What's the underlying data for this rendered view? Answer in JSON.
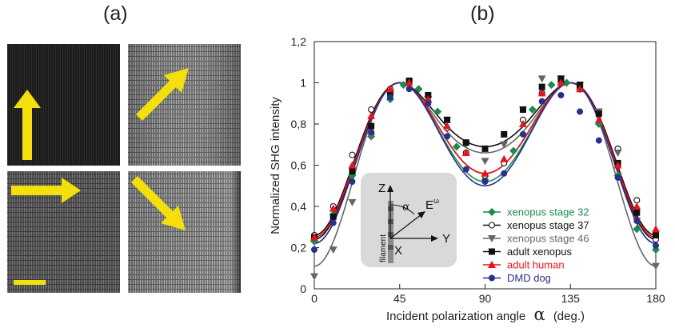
{
  "panel_labels": {
    "a": "(a)",
    "b": "(b)"
  },
  "micrographs": [
    {
      "id": "top-left",
      "arrow": "up",
      "tone": "dark"
    },
    {
      "id": "top-right",
      "arrow": "diagonal-up-right",
      "tone": "bright"
    },
    {
      "id": "bottom-left",
      "arrow": "right",
      "tone": "medium",
      "scale_bar": true
    },
    {
      "id": "bottom-right",
      "arrow": "diagonal-down-right",
      "tone": "bright"
    }
  ],
  "colors": {
    "arrow": "#f5df0a",
    "scale_bar": "#f5df0a"
  },
  "inset": {
    "z_label": "Z",
    "x_label": "X",
    "y_label": "Y",
    "alpha_label": "α",
    "e_label": "E",
    "e_superscript": "ω",
    "filament_label": "filament"
  },
  "chart_data": {
    "type": "scatter",
    "xlabel_prefix": "Incident polarization angle",
    "xlabel_symbol": "α",
    "xlabel_suffix": "(deg.)",
    "ylabel": "Normalized SHG intensity",
    "xlim": [
      0,
      180
    ],
    "ylim": [
      0,
      1.2
    ],
    "x_ticks": [
      "0",
      "45",
      "90",
      "135",
      "180"
    ],
    "x_tick_values": [
      0,
      45,
      90,
      135,
      180
    ],
    "y_ticks": [
      "0",
      "0,2",
      "0,4",
      "0,6",
      "0,8",
      "1",
      "1,2"
    ],
    "y_tick_values": [
      0,
      0.2,
      0.4,
      0.6,
      0.8,
      1.0,
      1.2
    ],
    "legend_position": "bottom-right",
    "series": [
      {
        "name": "xenopus stage 32",
        "color": "#1a8c4e",
        "marker": "diamond",
        "fit": {
          "a": 0.22,
          "b": 0.78,
          "r": 0.52
        },
        "points": [
          [
            0,
            0.23
          ],
          [
            10,
            0.36
          ],
          [
            20,
            0.55
          ],
          [
            30,
            0.74
          ],
          [
            40,
            0.92
          ],
          [
            47,
            0.99
          ],
          [
            55,
            0.97
          ],
          [
            65,
            0.86
          ],
          [
            75,
            0.69
          ],
          [
            90,
            0.53
          ],
          [
            105,
            0.67
          ],
          [
            115,
            0.87
          ],
          [
            125,
            0.99
          ],
          [
            133,
            1.0
          ],
          [
            140,
            0.97
          ],
          [
            150,
            0.8
          ],
          [
            160,
            0.55
          ],
          [
            170,
            0.29
          ],
          [
            180,
            0.19
          ]
        ]
      },
      {
        "name": "xenopus stage 37",
        "color": "#111111",
        "marker": "circle-open",
        "fit": {
          "a": 0.24,
          "b": 0.76,
          "r": 0.56
        },
        "points": [
          [
            0,
            0.26
          ],
          [
            10,
            0.4
          ],
          [
            20,
            0.65
          ],
          [
            30,
            0.87
          ],
          [
            40,
            0.97
          ],
          [
            50,
            1.0
          ],
          [
            60,
            0.91
          ],
          [
            70,
            0.78
          ],
          [
            80,
            0.66
          ],
          [
            90,
            0.55
          ],
          [
            100,
            0.61
          ],
          [
            110,
            0.82
          ],
          [
            120,
            0.95
          ],
          [
            130,
            1.0
          ],
          [
            140,
            0.98
          ],
          [
            150,
            0.86
          ],
          [
            160,
            0.68
          ],
          [
            170,
            0.43
          ],
          [
            180,
            0.24
          ]
        ]
      },
      {
        "name": "xenopus stage 46",
        "color": "#666666",
        "marker": "triangle-down",
        "fit": {
          "a": 0.11,
          "b": 0.91,
          "r": 0.66
        },
        "points": [
          [
            0,
            0.06
          ],
          [
            10,
            0.19
          ],
          [
            20,
            0.42
          ],
          [
            30,
            0.74
          ],
          [
            40,
            0.95
          ],
          [
            50,
            1.0
          ],
          [
            60,
            0.92
          ],
          [
            70,
            0.82
          ],
          [
            80,
            0.7
          ],
          [
            90,
            0.62
          ],
          [
            100,
            0.7
          ],
          [
            110,
            0.87
          ],
          [
            120,
            1.02
          ],
          [
            130,
            1.02
          ],
          [
            140,
            0.99
          ],
          [
            150,
            0.86
          ],
          [
            160,
            0.66
          ],
          [
            170,
            0.33
          ],
          [
            180,
            0.11
          ]
        ]
      },
      {
        "name": "adult xenopus",
        "color": "#111111",
        "marker": "square",
        "fit": {
          "a": 0.26,
          "b": 0.76,
          "r": 0.69
        },
        "points": [
          [
            0,
            0.25
          ],
          [
            10,
            0.35
          ],
          [
            20,
            0.57
          ],
          [
            30,
            0.79
          ],
          [
            40,
            0.95
          ],
          [
            50,
            1.01
          ],
          [
            60,
            0.94
          ],
          [
            70,
            0.82
          ],
          [
            80,
            0.71
          ],
          [
            90,
            0.68
          ],
          [
            100,
            0.75
          ],
          [
            110,
            0.87
          ],
          [
            120,
            0.98
          ],
          [
            130,
            1.02
          ],
          [
            140,
            0.99
          ],
          [
            150,
            0.85
          ],
          [
            160,
            0.61
          ],
          [
            170,
            0.37
          ],
          [
            180,
            0.26
          ]
        ]
      },
      {
        "name": "adult human",
        "color": "#e8141c",
        "marker": "triangle-up",
        "fit": {
          "a": 0.25,
          "b": 0.75,
          "r": 0.56
        },
        "points": [
          [
            0,
            0.25
          ],
          [
            10,
            0.39
          ],
          [
            20,
            0.6
          ],
          [
            30,
            0.84
          ],
          [
            40,
            0.97
          ],
          [
            50,
            1.0
          ],
          [
            60,
            0.92
          ],
          [
            70,
            0.79
          ],
          [
            80,
            0.66
          ],
          [
            90,
            0.56
          ],
          [
            100,
            0.63
          ],
          [
            110,
            0.8
          ],
          [
            120,
            0.95
          ],
          [
            130,
            1.0
          ],
          [
            140,
            0.97
          ],
          [
            150,
            0.82
          ],
          [
            160,
            0.6
          ],
          [
            170,
            0.4
          ],
          [
            180,
            0.29
          ]
        ]
      },
      {
        "name": "DMD dog",
        "color": "#2a2f8c",
        "marker": "circle",
        "fit": {
          "a": 0.22,
          "b": 0.76,
          "r": 0.5
        },
        "points": [
          [
            0,
            0.19
          ],
          [
            10,
            0.32
          ],
          [
            20,
            0.52
          ],
          [
            30,
            0.76
          ],
          [
            40,
            0.93
          ],
          [
            50,
            0.97
          ],
          [
            60,
            0.9
          ],
          [
            70,
            0.74
          ],
          [
            80,
            0.58
          ],
          [
            90,
            0.52
          ],
          [
            100,
            0.56
          ],
          [
            110,
            0.75
          ],
          [
            120,
            0.91
          ],
          [
            130,
            0.94
          ],
          [
            140,
            0.86
          ],
          [
            150,
            0.72
          ],
          [
            160,
            0.54
          ],
          [
            170,
            0.33
          ],
          [
            180,
            0.21
          ]
        ]
      }
    ]
  }
}
